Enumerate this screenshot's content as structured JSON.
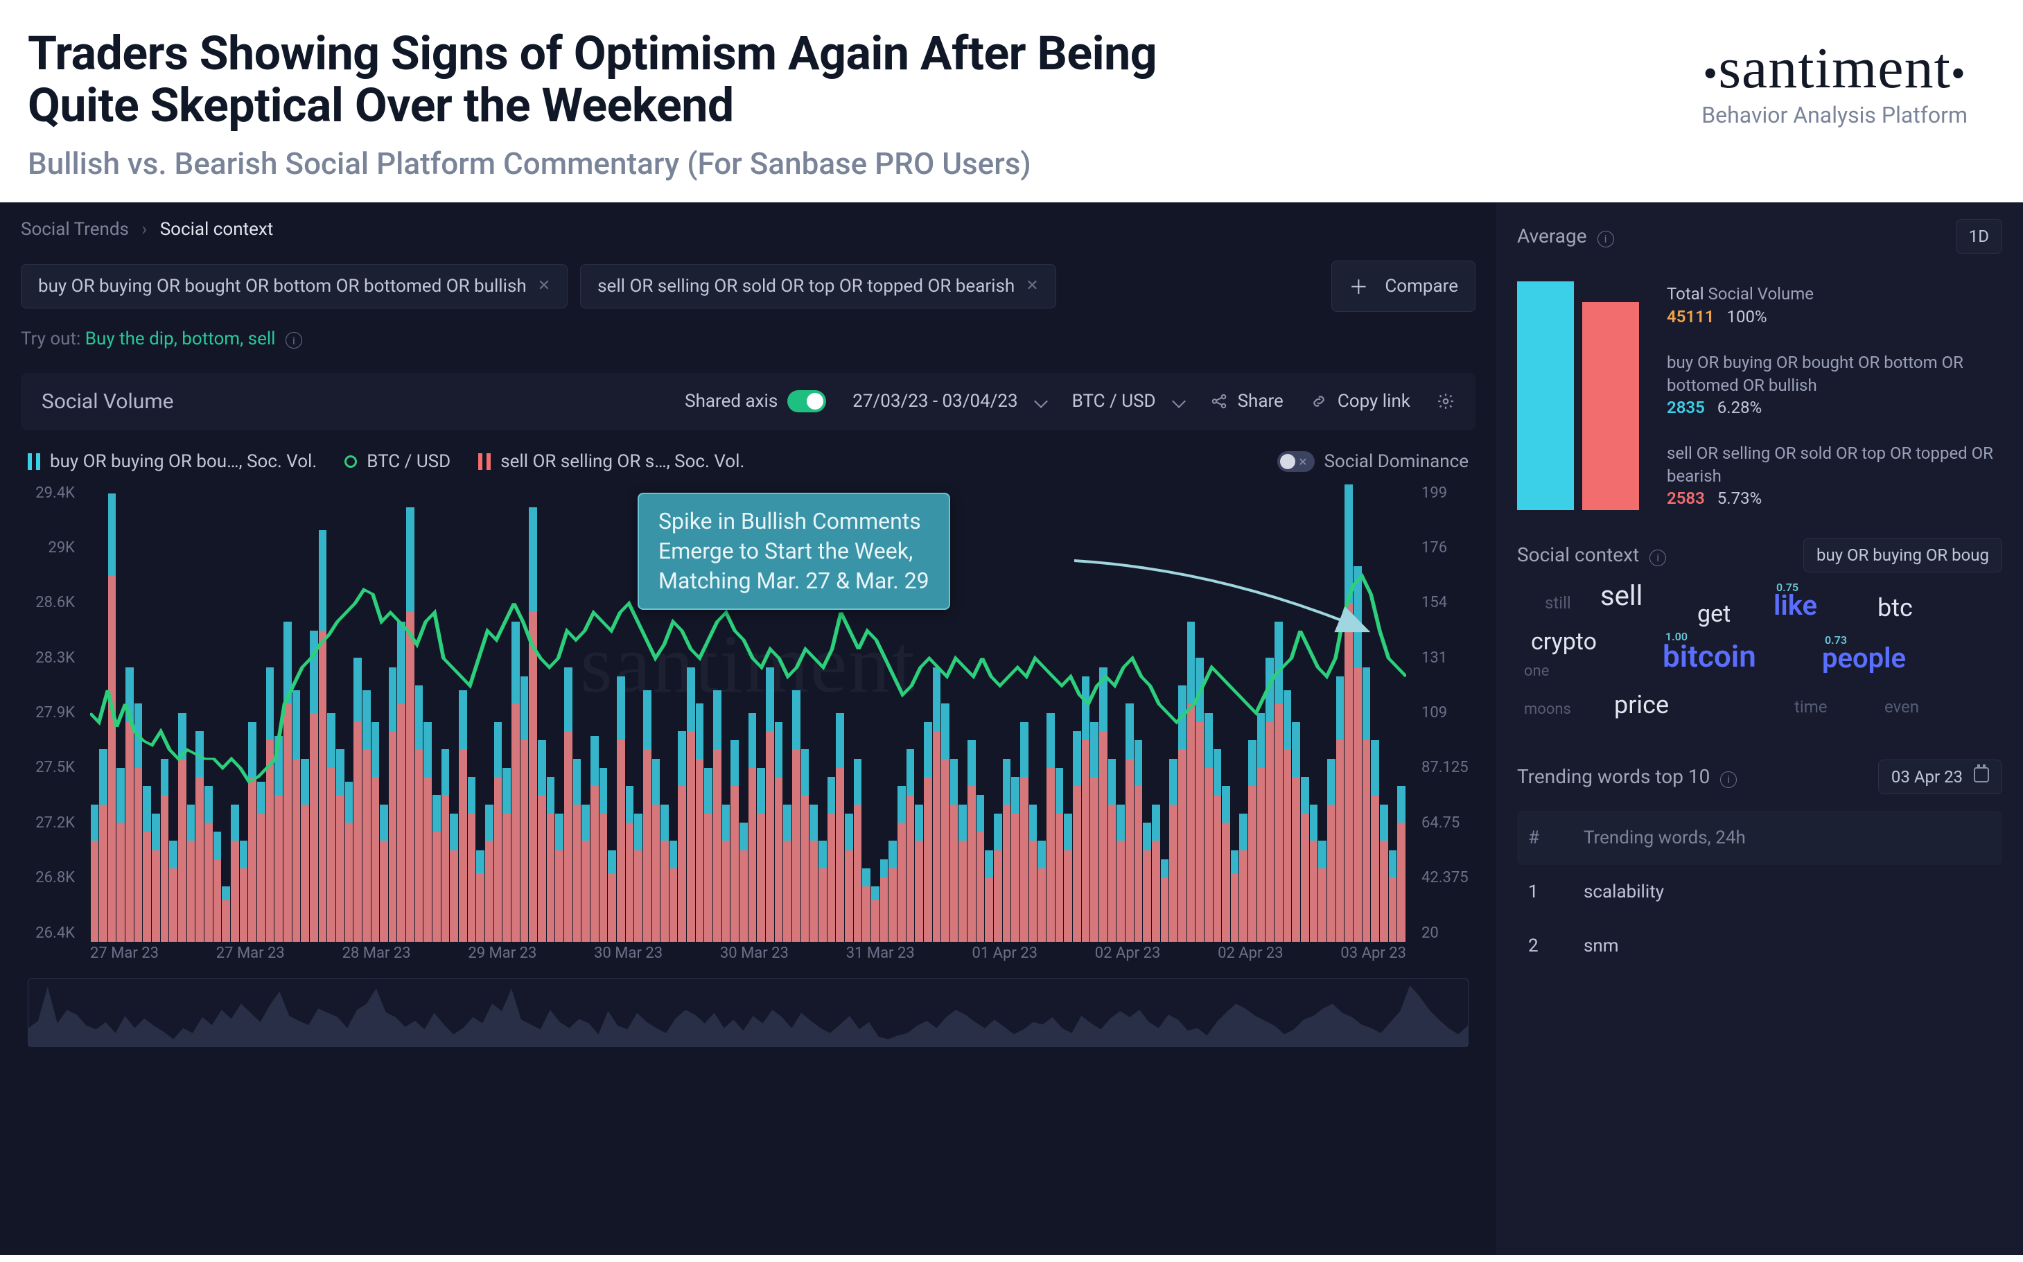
{
  "header": {
    "title_line1": "Traders Showing Signs of Optimism Again After Being",
    "title_line2": "Quite Skeptical Over the Weekend",
    "subtitle": "Bullish vs. Bearish Social Platform Commentary (For Sanbase PRO Users)",
    "brand_name": "santiment",
    "brand_tag": "Behavior Analysis Platform"
  },
  "breadcrumb": {
    "root": "Social Trends",
    "current": "Social context"
  },
  "filters": {
    "q1": "buy OR buying OR bought OR bottom OR bottomed OR bullish",
    "q2": "sell OR selling OR sold OR top OR topped OR bearish",
    "compare": "Compare",
    "tryout_prefix": "Try out:",
    "tryout_value": "Buy the dip, bottom, sell"
  },
  "toolbar": {
    "title": "Social Volume",
    "shared_axis": "Shared axis",
    "daterange": "27/03/23 - 03/04/23",
    "pair": "BTC / USD",
    "share": "Share",
    "copylink": "Copy link"
  },
  "legend": {
    "s1": "buy OR buying OR bou…, Soc. Vol.",
    "s2": "BTC / USD",
    "s3": "sell OR selling OR s…, Soc. Vol.",
    "dominance": "Social Dominance"
  },
  "annotation": {
    "l1": "Spike in Bullish Comments",
    "l2": "Emerge to Start the Week,",
    "l3": "Matching Mar. 27 & Mar. 29"
  },
  "watermark": "santiment",
  "chart": {
    "colors": {
      "bullish_bar": "#3cd0e8",
      "bearish_bar": "#f26d6d",
      "price_line": "#2cd07c",
      "bg": "#131626"
    },
    "yleft_ticks": [
      "29.4K",
      "29K",
      "28.6K",
      "28.3K",
      "27.9K",
      "27.5K",
      "27.2K",
      "26.8K",
      "26.4K"
    ],
    "yright_ticks": [
      "199",
      "176",
      "154",
      "131",
      "109",
      "87.125",
      "64.75",
      "42.375",
      "20"
    ],
    "x_ticks": [
      "27 Mar 23",
      "27 Mar 23",
      "28 Mar 23",
      "29 Mar 23",
      "30 Mar 23",
      "30 Mar 23",
      "31 Mar 23",
      "01 Apr 23",
      "02 Apr 23",
      "02 Apr 23",
      "03 Apr 23"
    ],
    "bullish_bars_pct": [
      30,
      42,
      98,
      38,
      60,
      52,
      34,
      28,
      40,
      22,
      50,
      30,
      46,
      34,
      24,
      12,
      30,
      22,
      48,
      35,
      60,
      45,
      70,
      55,
      40,
      68,
      90,
      50,
      42,
      35,
      62,
      55,
      48,
      30,
      60,
      70,
      95,
      56,
      48,
      32,
      42,
      28,
      55,
      36,
      20,
      30,
      48,
      38,
      70,
      58,
      95,
      44,
      36,
      28,
      60,
      40,
      30,
      45,
      38,
      20,
      58,
      34,
      28,
      55,
      40,
      30,
      22,
      46,
      60,
      52,
      38,
      55,
      30,
      44,
      26,
      50,
      38,
      60,
      48,
      30,
      55,
      42,
      30,
      22,
      36,
      50,
      28,
      40,
      16,
      12,
      18,
      22,
      34,
      42,
      30,
      48,
      60,
      52,
      40,
      30,
      44,
      32,
      20,
      28,
      40,
      36,
      48,
      30,
      22,
      50,
      38,
      28,
      46,
      58,
      48,
      60,
      40,
      30,
      52,
      44,
      26,
      30,
      18,
      40,
      56,
      70,
      62,
      50,
      42,
      34,
      20,
      28,
      44,
      50,
      62,
      70,
      55,
      48,
      36,
      30,
      22,
      40,
      58,
      100,
      82,
      60,
      44,
      30,
      20,
      34
    ],
    "bearish_bars_pct": [
      22,
      30,
      80,
      26,
      48,
      38,
      24,
      20,
      32,
      16,
      40,
      22,
      36,
      26,
      18,
      9,
      22,
      16,
      36,
      28,
      44,
      32,
      52,
      40,
      30,
      50,
      68,
      38,
      32,
      26,
      48,
      42,
      36,
      22,
      46,
      52,
      72,
      42,
      36,
      24,
      32,
      20,
      42,
      28,
      15,
      22,
      36,
      28,
      52,
      44,
      72,
      32,
      28,
      20,
      46,
      30,
      22,
      34,
      28,
      15,
      44,
      26,
      20,
      42,
      30,
      22,
      16,
      34,
      46,
      40,
      28,
      42,
      22,
      34,
      20,
      38,
      28,
      46,
      36,
      22,
      42,
      32,
      22,
      16,
      28,
      38,
      20,
      30,
      12,
      9,
      14,
      16,
      26,
      32,
      22,
      36,
      46,
      40,
      30,
      22,
      34,
      24,
      14,
      20,
      30,
      28,
      36,
      22,
      16,
      38,
      28,
      20,
      34,
      44,
      36,
      46,
      30,
      22,
      40,
      34,
      20,
      22,
      14,
      30,
      42,
      52,
      48,
      38,
      32,
      26,
      15,
      20,
      34,
      38,
      48,
      52,
      42,
      36,
      28,
      22,
      16,
      30,
      44,
      74,
      60,
      44,
      32,
      22,
      14,
      26
    ],
    "price_points_pct": [
      50,
      48,
      55,
      47,
      52,
      46,
      44,
      43,
      46,
      42,
      40,
      42,
      41,
      40,
      40,
      38,
      40,
      38,
      35,
      36,
      38,
      40,
      52,
      56,
      60,
      62,
      65,
      67,
      70,
      72,
      74,
      77,
      76,
      70,
      72,
      70,
      68,
      65,
      70,
      72,
      62,
      60,
      58,
      56,
      62,
      68,
      66,
      70,
      74,
      70,
      65,
      62,
      60,
      62,
      68,
      66,
      68,
      72,
      70,
      68,
      72,
      74,
      70,
      66,
      62,
      65,
      70,
      68,
      64,
      62,
      66,
      70,
      72,
      68,
      66,
      62,
      60,
      64,
      62,
      58,
      60,
      64,
      62,
      60,
      64,
      72,
      68,
      64,
      68,
      66,
      62,
      58,
      54,
      56,
      60,
      62,
      60,
      58,
      62,
      60,
      58,
      62,
      58,
      56,
      58,
      60,
      58,
      62,
      60,
      58,
      56,
      58,
      54,
      52,
      56,
      58,
      56,
      60,
      62,
      58,
      56,
      52,
      50,
      48,
      50,
      52,
      56,
      60,
      58,
      56,
      54,
      52,
      50,
      54,
      58,
      60,
      62,
      68,
      64,
      60,
      58,
      62,
      72,
      78,
      80,
      76,
      68,
      62,
      60,
      58
    ]
  },
  "side": {
    "avg_label": "Average",
    "period_badge": "1D",
    "total_label_a": "Total",
    "total_label_b": "Social Volume",
    "total_value": "45111",
    "total_pct": "100%",
    "row1_label": "buy OR buying OR bought OR bottom OR bottomed OR bullish",
    "row1_value": "2835",
    "row1_pct": "6.28%",
    "row2_label": "sell OR selling OR sold OR top OR topped OR bearish",
    "row2_value": "2583",
    "row2_pct": "5.73%",
    "sc_label": "Social context",
    "sc_pill": "buy OR buying OR boug",
    "cloud": {
      "still": "still",
      "sell": "sell",
      "get": "get",
      "like": "like",
      "like_v": "0.75",
      "btc": "btc",
      "crypto": "crypto",
      "bitcoin": "bitcoin",
      "bitcoin_v": "1.00",
      "people": "people",
      "people_v": "0.73",
      "one": "one",
      "price": "price",
      "moons": "moons",
      "time": "time",
      "even": "even"
    },
    "trend_label": "Trending words top 10",
    "trend_date": "03 Apr 23",
    "trend_col_n": "#",
    "trend_col_w": "Trending words, 24h",
    "trend_rows": [
      {
        "n": "1",
        "w": "scalability"
      },
      {
        "n": "2",
        "w": "snm"
      }
    ]
  }
}
